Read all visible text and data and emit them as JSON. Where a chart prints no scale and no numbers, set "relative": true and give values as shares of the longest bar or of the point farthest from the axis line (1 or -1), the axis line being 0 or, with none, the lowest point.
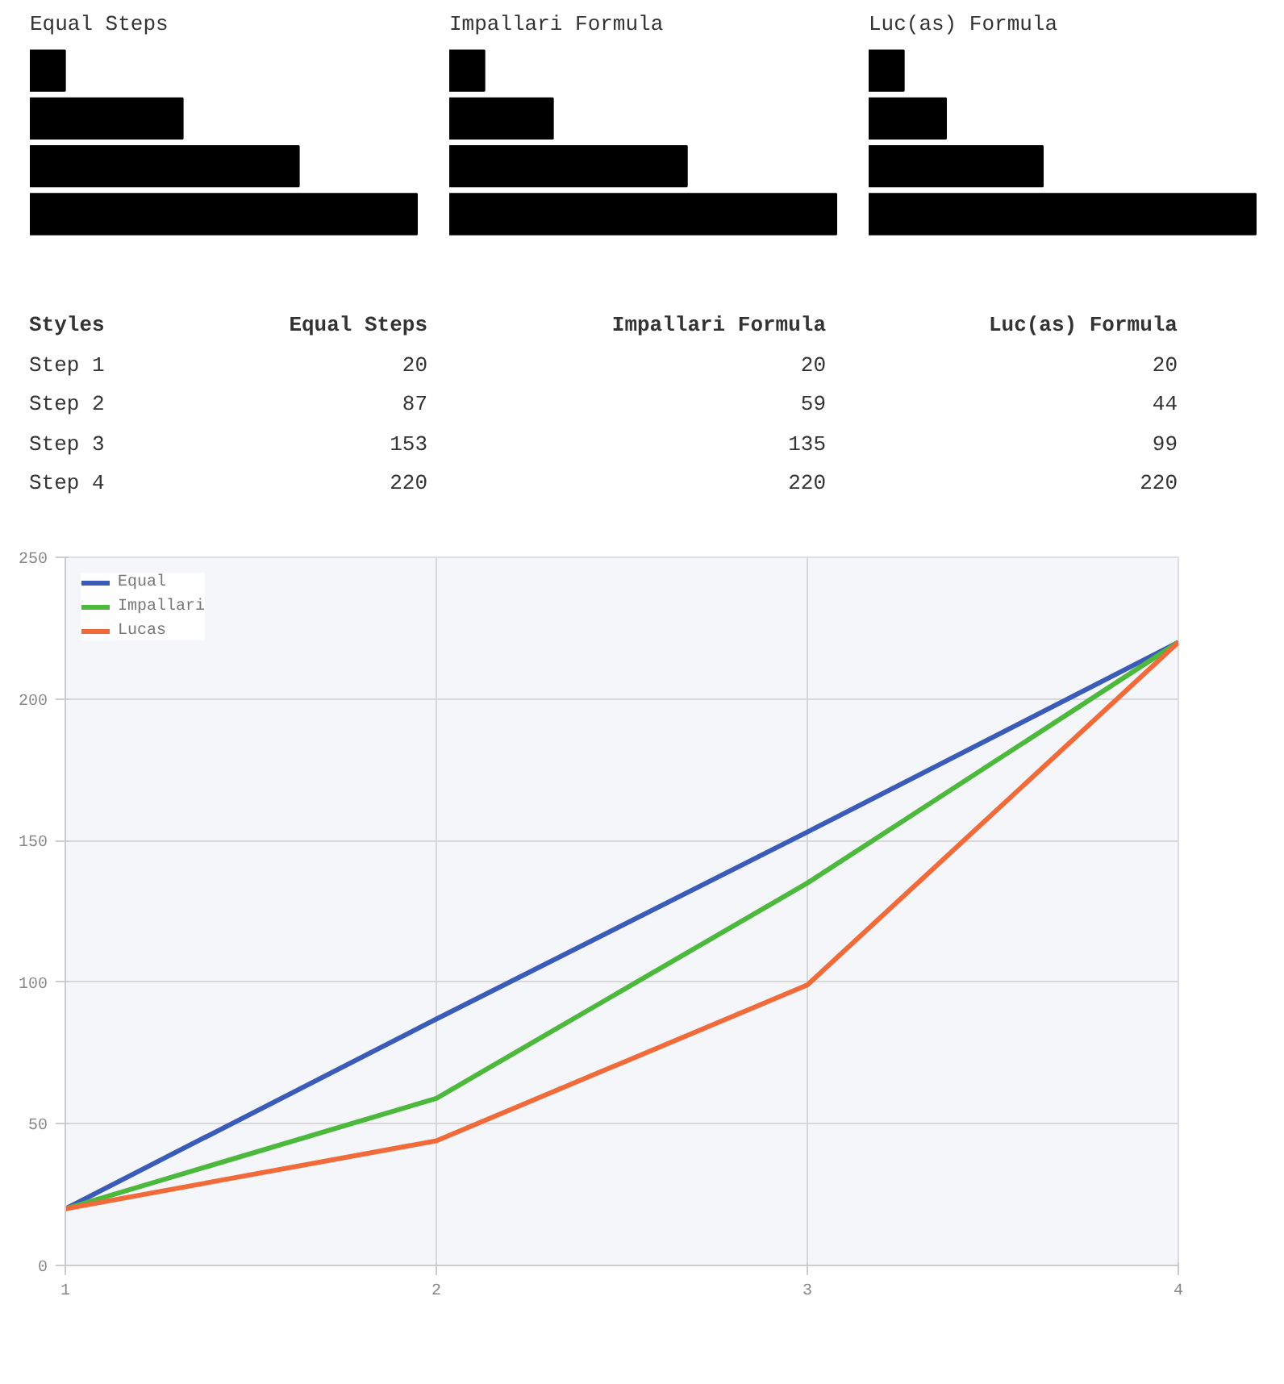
{
  "chart_data": [
    {
      "type": "bar",
      "orientation": "horizontal",
      "relative": true,
      "title": "Equal Steps",
      "categories": [
        null,
        null,
        null,
        null
      ],
      "values": [
        0.091,
        0.395,
        0.695,
        1
      ],
      "color": "#000000"
    },
    {
      "type": "bar",
      "orientation": "horizontal",
      "relative": true,
      "title": "Impallari Formula",
      "categories": [
        null,
        null,
        null,
        null
      ],
      "values": [
        0.091,
        0.268,
        0.614,
        1
      ],
      "color": "#000000"
    },
    {
      "type": "bar",
      "orientation": "horizontal",
      "relative": true,
      "title": "Luc(as) Formula",
      "categories": [
        null,
        null,
        null,
        null
      ],
      "values": [
        0.091,
        0.2,
        0.45,
        1
      ],
      "color": "#000000"
    },
    {
      "type": "other",
      "ylabel": "Styles",
      "categories": [
        "Step 1",
        "Step 2",
        "Step 3",
        "Step 4"
      ],
      "data_labels": true,
      "series": [
        {
          "name": "Equal Steps",
          "values": [
            20,
            87,
            153,
            220
          ]
        },
        {
          "name": "Impallari Formula",
          "values": [
            20,
            59,
            135,
            220
          ]
        },
        {
          "name": "Luc(as) Formula",
          "values": [
            20,
            44,
            99,
            220
          ]
        }
      ]
    },
    {
      "type": "line",
      "x": [
        1,
        2,
        3,
        4
      ],
      "xlim": [
        1,
        4
      ],
      "xticks": [
        1,
        2,
        3,
        4
      ],
      "ylim": [
        0,
        250
      ],
      "yticks": [
        0,
        50,
        100,
        150,
        200,
        250
      ],
      "grid": true,
      "legend": "top left",
      "line_style": "solid",
      "marker": "none",
      "series": [
        {
          "name": "Equal",
          "color": "#3a5cb8",
          "values": [
            20,
            87,
            153,
            220
          ]
        },
        {
          "name": "Impallari",
          "color": "#4cb83c",
          "values": [
            20,
            59,
            135,
            220
          ]
        },
        {
          "name": "Lucas",
          "color": "#f06a3a",
          "values": [
            20,
            44,
            99,
            220
          ]
        }
      ]
    }
  ]
}
